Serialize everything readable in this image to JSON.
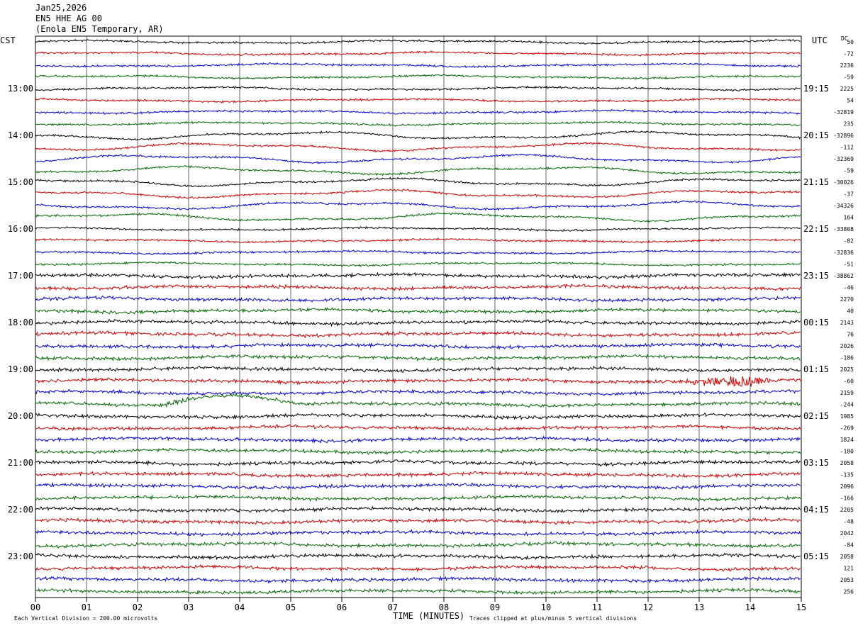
{
  "header": {
    "date": "Jan25,2026",
    "channel": "EN5 HHE AG 00",
    "station": "(Enola EN5 Temporary, AR)"
  },
  "axes": {
    "left_zone_label": "CST",
    "right_zone_label": "UTC",
    "dc_label": "DC",
    "xlabel": "TIME (MINUTES)",
    "x_tick_labels": [
      "00",
      "01",
      "02",
      "03",
      "04",
      "05",
      "06",
      "07",
      "08",
      "09",
      "10",
      "11",
      "12",
      "13",
      "14",
      "15"
    ],
    "left_hour_labels": [
      "13:00",
      "14:00",
      "15:00",
      "16:00",
      "17:00",
      "18:00",
      "19:00",
      "20:00",
      "21:00",
      "22:00",
      "23:00"
    ],
    "right_hour_labels": [
      "19:15",
      "20:15",
      "21:15",
      "22:15",
      "23:15",
      "00:15",
      "01:15",
      "02:15",
      "03:15",
      "04:15",
      "05:15"
    ]
  },
  "footer": {
    "scale_note": "Each Vertical Division =  200.00 microvolts",
    "clip_note": "Traces clipped at plus/minus 5 vertical divisions"
  },
  "colors": {
    "trace_cycle": [
      "#000000",
      "#cc0000",
      "#0000cc",
      "#006600"
    ],
    "grid": "#000000"
  },
  "chart_data": {
    "type": "line",
    "title": "",
    "xlabel": "TIME (MINUTES)",
    "xlim": [
      0,
      15
    ],
    "traces_per_hour": 4,
    "minutes_per_trace": 15,
    "start_time_cst": "12:00",
    "dc_offsets": [
      "50",
      "-72",
      "2236",
      "-59",
      "2225",
      "54",
      "-32819",
      "235",
      "-32896",
      "-112",
      "-32369",
      "-59",
      "-30026",
      "-37",
      "-34326",
      "164",
      "-33808",
      "-82",
      "-32836",
      "-51",
      "-38862",
      "-46",
      "2270",
      "40",
      "2143",
      "76",
      "2026",
      "-186",
      "2025",
      "-60",
      "2159",
      "-244",
      "1985",
      "-269",
      "1824",
      "-180",
      "2058",
      "-135",
      "2096",
      "-166",
      "2205",
      "-48",
      "2042",
      "-84",
      "2058",
      "121",
      "2053",
      "256"
    ],
    "events": [
      {
        "trace": 29,
        "start_min": 12.6,
        "end_min": 14.7,
        "label": "high-frequency burst"
      },
      {
        "trace": 31,
        "start_min": 2.5,
        "end_min": 5.2,
        "label": "long-period wave"
      }
    ]
  }
}
